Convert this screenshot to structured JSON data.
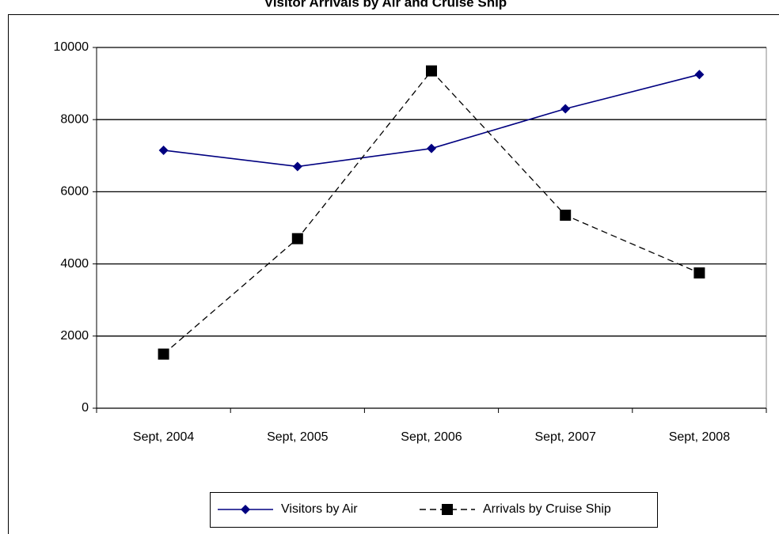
{
  "chart_data": {
    "type": "line",
    "title": "Visitor Arrivals by Air and Cruise Ship",
    "categories": [
      "Sept, 2004",
      "Sept, 2005",
      "Sept, 2006",
      "Sept, 2007",
      "Sept, 2008"
    ],
    "series": [
      {
        "name": "Visitors by Air",
        "color": "#000080",
        "marker": "diamond",
        "line_style": "solid",
        "values": [
          7150,
          6700,
          7200,
          8300,
          9250
        ]
      },
      {
        "name": "Arrivals by Cruise Ship",
        "color": "#000000",
        "marker": "square",
        "line_style": "dashed",
        "values": [
          1500,
          4700,
          9350,
          5350,
          3750
        ]
      }
    ],
    "ylim": [
      0,
      10000
    ],
    "yticks": [
      0,
      2000,
      4000,
      6000,
      8000,
      10000
    ],
    "grid": true,
    "legend": "bottom"
  }
}
